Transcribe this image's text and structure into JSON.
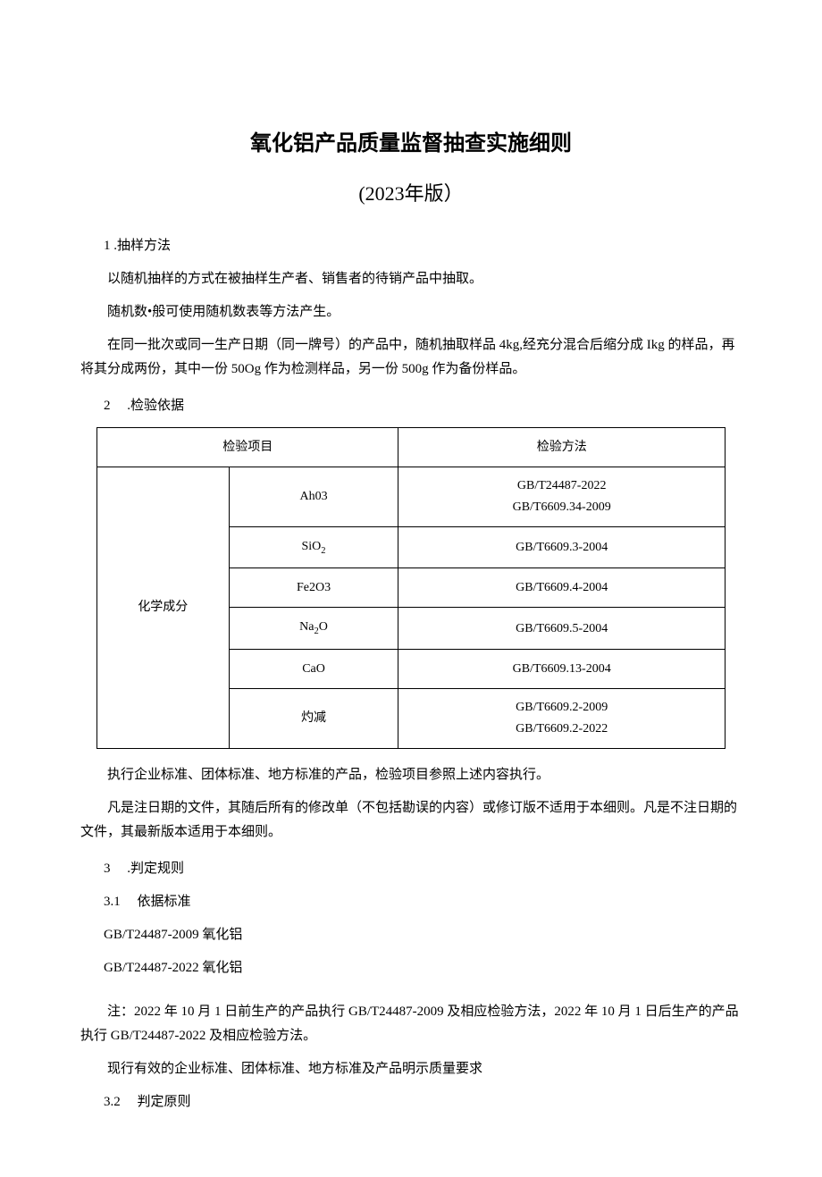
{
  "title": "氧化铝产品质量监督抽查实施细则",
  "subtitle": "(2023年版）",
  "sections": {
    "s1": {
      "heading": "1 .抽样方法",
      "p1": "以随机抽样的方式在被抽样生产者、销售者的待销产品中抽取。",
      "p2": "随机数•般可使用随机数表等方法产生。",
      "p3": "在同一批次或同一生产日期（同一牌号）的产品中，随机抽取样品 4kg,经充分混合后缩分成 Ikg 的样品，再将其分成两份，其中一份 50Og 作为检测样品，另一份 500g 作为备份样品。"
    },
    "s2": {
      "heading": "2　 .检验依据",
      "p1": "执行企业标准、团体标准、地方标准的产品，检验项目参照上述内容执行。",
      "p2": "凡是注日期的文件，其随后所有的修改单（不包括勘误的内容）或修订版不适用于本细则。凡是不注日期的文件，其最新版本适用于本细则。"
    },
    "s3": {
      "heading": "3　 .判定规则",
      "s31_heading": "3.1　 依据标准",
      "s31_p1": "GB/T24487-2009 氧化铝",
      "s31_p2": "GB/T24487-2022 氧化铝",
      "s31_note": "注：2022 年 10 月 1 日前生产的产品执行 GB/T24487-2009 及相应检验方法，2022 年 10 月 1 日后生产的产品执行 GB/T24487-2022 及相应检验方法。",
      "s31_p3": "现行有效的企业标准、团体标准、地方标准及产品明示质量要求",
      "s32_heading": "3.2　 判定原则"
    }
  },
  "table": {
    "header_item": "检验项目",
    "header_method": "检验方法",
    "group_label": "化学成分",
    "rows": [
      {
        "sub": "Ah03",
        "method_line1": "GB/T24487-2022",
        "method_line2": "GB/T6609.34-2009"
      },
      {
        "sub_html": "SiO<sub>2</sub>",
        "method": "GB/T6609.3-2004"
      },
      {
        "sub": "Fe2O3",
        "method": "GB/T6609.4-2004"
      },
      {
        "sub_html": "Na<sub>2</sub>O",
        "method": "GB/T6609.5-2004"
      },
      {
        "sub": "CaO",
        "method": "GB/T6609.13-2004"
      },
      {
        "sub": "灼减",
        "method_line1": "GB/T6609.2-2009",
        "method_line2": "GB/T6609.2-2022"
      }
    ]
  }
}
